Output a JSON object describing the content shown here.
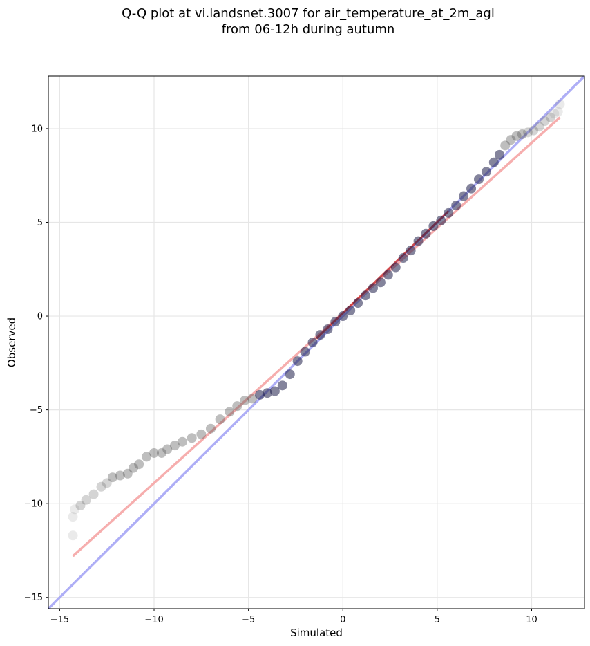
{
  "chart_data": {
    "type": "scatter",
    "title_lines": [
      "Q-Q plot at vi.landsnet.3007 for air_temperature_at_2m_agl",
      "from 06-12h during autumn"
    ],
    "xlabel": "Simulated",
    "ylabel": "Observed",
    "xlim": [
      -15.6,
      12.8
    ],
    "ylim": [
      -15.6,
      12.8
    ],
    "xticks": [
      -15,
      -10,
      -5,
      0,
      5,
      10
    ],
    "yticks": [
      -15,
      -10,
      -5,
      0,
      5,
      10
    ],
    "xtick_labels": [
      "−15",
      "−10",
      "−5",
      "0",
      "5",
      "10"
    ],
    "ytick_labels": [
      "−15",
      "−10",
      "−5",
      "0",
      "5",
      "10"
    ],
    "grid": true,
    "quantile_points": [
      [
        -14.3,
        -11.7
      ],
      [
        -14.3,
        -10.7
      ],
      [
        -14.2,
        -10.3
      ],
      [
        -13.9,
        -10.1
      ],
      [
        -13.6,
        -9.8
      ],
      [
        -13.2,
        -9.5
      ],
      [
        -12.8,
        -9.1
      ],
      [
        -12.5,
        -8.9
      ],
      [
        -12.2,
        -8.6
      ],
      [
        -11.8,
        -8.5
      ],
      [
        -11.4,
        -8.4
      ],
      [
        -11.1,
        -8.1
      ],
      [
        -10.8,
        -7.9
      ],
      [
        -10.4,
        -7.5
      ],
      [
        -10.0,
        -7.3
      ],
      [
        -9.6,
        -7.3
      ],
      [
        -9.3,
        -7.1
      ],
      [
        -8.9,
        -6.9
      ],
      [
        -8.5,
        -6.7
      ],
      [
        -8.0,
        -6.5
      ],
      [
        -7.5,
        -6.3
      ],
      [
        -7.0,
        -6.0
      ],
      [
        -6.5,
        -5.5
      ],
      [
        -6.0,
        -5.1
      ],
      [
        -5.6,
        -4.8
      ],
      [
        -5.2,
        -4.5
      ],
      [
        -4.8,
        -4.4
      ],
      [
        -4.4,
        -4.2
      ],
      [
        -4.0,
        -4.1
      ],
      [
        -3.6,
        -4.0
      ],
      [
        -3.2,
        -3.7
      ],
      [
        -2.8,
        -3.1
      ],
      [
        -2.4,
        -2.4
      ],
      [
        -2.0,
        -1.9
      ],
      [
        -1.6,
        -1.4
      ],
      [
        -1.2,
        -1.0
      ],
      [
        -0.8,
        -0.7
      ],
      [
        -0.4,
        -0.3
      ],
      [
        0.0,
        0.0
      ],
      [
        0.4,
        0.3
      ],
      [
        0.8,
        0.7
      ],
      [
        1.2,
        1.1
      ],
      [
        1.6,
        1.5
      ],
      [
        2.0,
        1.8
      ],
      [
        2.4,
        2.2
      ],
      [
        2.8,
        2.6
      ],
      [
        3.2,
        3.1
      ],
      [
        3.6,
        3.5
      ],
      [
        4.0,
        4.0
      ],
      [
        4.4,
        4.4
      ],
      [
        4.8,
        4.8
      ],
      [
        5.2,
        5.1
      ],
      [
        5.6,
        5.5
      ],
      [
        6.0,
        5.9
      ],
      [
        6.4,
        6.4
      ],
      [
        6.8,
        6.8
      ],
      [
        7.2,
        7.3
      ],
      [
        7.6,
        7.7
      ],
      [
        8.0,
        8.2
      ],
      [
        8.3,
        8.6
      ],
      [
        8.6,
        9.1
      ],
      [
        8.9,
        9.4
      ],
      [
        9.2,
        9.6
      ],
      [
        9.5,
        9.7
      ],
      [
        9.8,
        9.8
      ],
      [
        10.1,
        9.9
      ],
      [
        10.4,
        10.1
      ],
      [
        10.7,
        10.4
      ],
      [
        11.0,
        10.6
      ],
      [
        11.2,
        10.8
      ],
      [
        11.4,
        10.9
      ],
      [
        11.5,
        11.3
      ]
    ],
    "identity_line": {
      "color": "#aaaaf5",
      "points": [
        [
          -15.6,
          -15.6
        ],
        [
          12.8,
          12.8
        ]
      ]
    },
    "fit_line": {
      "color": "#f5aaaa",
      "points": [
        [
          -14.3,
          -12.8
        ],
        [
          11.5,
          10.6
        ]
      ]
    },
    "central_fit_line": {
      "color": "#cc3333",
      "points": [
        [
          -1.4,
          -1.2
        ],
        [
          5.6,
          5.6
        ]
      ]
    },
    "colors": {
      "points": "#555555",
      "points_center": "#1f1f4a"
    }
  }
}
